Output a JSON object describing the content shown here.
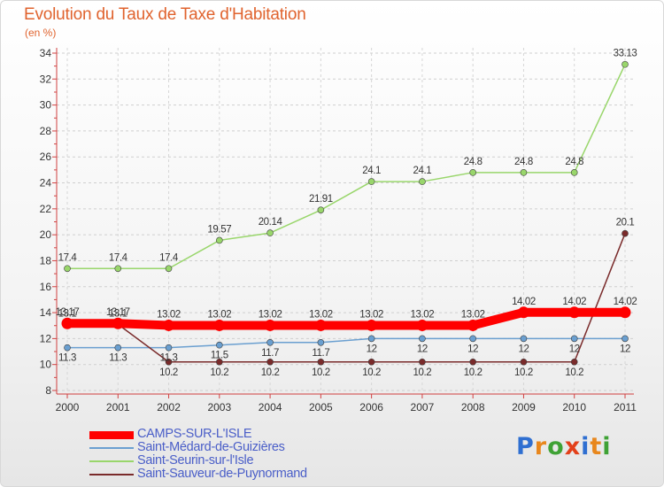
{
  "title": "Evolution du Taux de Taxe d'Habitation",
  "unit_label": "(en %)",
  "brand": {
    "letters": [
      "P",
      "r",
      "o",
      "x",
      "i",
      "t",
      "i"
    ],
    "colors": [
      "#2f6fd1",
      "#e8871d",
      "#3fa235",
      "#e3401a",
      "#2f6fd1",
      "#e8871d",
      "#3fa235"
    ]
  },
  "chart_data": {
    "type": "line",
    "title": "Evolution du Taux de Taxe d'Habitation",
    "ylabel": "(en %)",
    "xlabel": "",
    "x": [
      "2000",
      "2001",
      "2002",
      "2003",
      "2004",
      "2005",
      "2006",
      "2007",
      "2008",
      "2009",
      "2010",
      "2011"
    ],
    "ylim": [
      8,
      34
    ],
    "yticks": [
      8,
      10,
      12,
      14,
      16,
      18,
      20,
      22,
      24,
      26,
      28,
      30,
      32,
      34
    ],
    "grid": "horizontal-dashed",
    "series": [
      {
        "name": "CAMPS-SUR-L'ISLE",
        "color": "#ff0000",
        "values": [
          13.17,
          13.17,
          13.02,
          13.02,
          13.02,
          13.02,
          13.02,
          13.02,
          13.02,
          14.02,
          14.02,
          14.02
        ],
        "labels": [
          "13.17",
          "13.17",
          "13.02",
          "13.02",
          "13.02",
          "13.02",
          "13.02",
          "13.02",
          "13.02",
          "14.02",
          "14.02",
          "14.02"
        ]
      },
      {
        "name": "Saint-Médard-de-Guizières",
        "color": "#6a9fd0",
        "values": [
          11.3,
          11.3,
          11.3,
          11.5,
          11.7,
          11.7,
          12,
          12,
          12,
          12,
          12,
          12
        ],
        "labels": [
          "11.3",
          "11.3",
          "11.3",
          "11.5",
          "11.7",
          "11.7",
          "12",
          "12",
          "12",
          "12",
          "12",
          "12"
        ]
      },
      {
        "name": "Saint-Seurin-sur-l'Isle",
        "color": "#99d66b",
        "values": [
          17.4,
          17.4,
          17.4,
          19.57,
          20.14,
          21.91,
          24.1,
          24.1,
          24.8,
          24.8,
          24.8,
          33.13
        ],
        "labels": [
          "17.4",
          "17.4",
          "17.4",
          "19.57",
          "20.14",
          "21.91",
          "24.1",
          "24.1",
          "24.8",
          "24.8",
          "24.8",
          "33.13"
        ]
      },
      {
        "name": "Saint-Sauveur-de-Puynormand",
        "color": "#7a2b2b",
        "values": [
          13.1,
          13.1,
          10.2,
          10.2,
          10.2,
          10.2,
          10.2,
          10.2,
          10.2,
          10.2,
          10.2,
          20.1
        ],
        "labels": [
          "13.1",
          "13.1",
          "10.2",
          "10.2",
          "10.2",
          "10.2",
          "10.2",
          "10.2",
          "10.2",
          "10.2",
          "10.2",
          "20.1"
        ]
      }
    ],
    "legend": "bottom-left"
  }
}
